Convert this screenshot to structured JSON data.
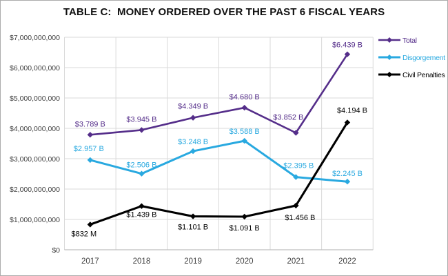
{
  "title": "TABLE C:  MONEY ORDERED OVER THE PAST 6 FISCAL YEARS",
  "colors": {
    "title_text": "#111111",
    "axis_text": "#404040",
    "gridline": "#d9d9d9",
    "axis_line": "#bfbfbf",
    "background": "#ffffff",
    "frame_border": "#ababab"
  },
  "chart_data": {
    "type": "line",
    "title": "TABLE C:  MONEY ORDERED OVER THE PAST 6 FISCAL YEARS",
    "categories": [
      "2017",
      "2018",
      "2019",
      "2020",
      "2021",
      "2022"
    ],
    "series": [
      {
        "name": "Total",
        "color": "#552E8A",
        "values": [
          3789000000,
          3945000000,
          4349000000,
          4680000000,
          3852000000,
          6439000000
        ],
        "labels": [
          "$3.789 B",
          "$3.945 B",
          "$4.349 B",
          "$4.680 B",
          "$3.852 B",
          "$6.439 B"
        ]
      },
      {
        "name": "Disgorgement",
        "color": "#29A9E0",
        "values": [
          2957000000,
          2506000000,
          3248000000,
          3588000000,
          2395000000,
          2245000000
        ],
        "labels": [
          "$2.957 B",
          "$2.506 B",
          "$3.248 B",
          "$3.588 B",
          "$2.395 B",
          "$2.245 B"
        ]
      },
      {
        "name": "Civil Penalties",
        "color": "#000000",
        "values": [
          832000000,
          1439000000,
          1101000000,
          1091000000,
          1456000000,
          4194000000
        ],
        "labels": [
          "$832 M",
          "$1.439 B",
          "$1.101 B",
          "$1.091 B",
          "$1.456 B",
          "$4.194 B"
        ]
      }
    ],
    "xlabel": "",
    "ylabel": "",
    "ylim": [
      0,
      7000000000
    ],
    "y_ticks": [
      "$0",
      "$1,000,000,000",
      "$2,000,000,000",
      "$3,000,000,000",
      "$4,000,000,000",
      "$5,000,000,000",
      "$6,000,000,000",
      "$7,000,000,000"
    ],
    "grid": true,
    "marker": "diamond",
    "legend_position": "upper-right",
    "legend_entries": [
      "Total",
      "Disgorgement",
      "Civil Penalties"
    ]
  }
}
